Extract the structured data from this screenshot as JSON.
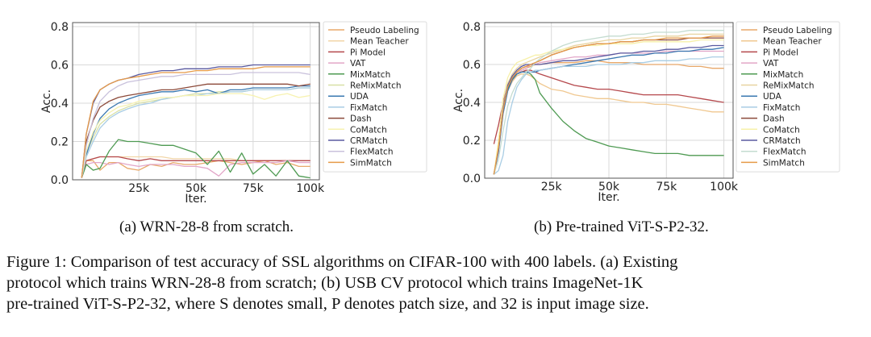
{
  "figure": {
    "subcaptions": [
      "(a) WRN-28-8 from scratch.",
      "(b) Pre-trained ViT-S-P2-32."
    ],
    "caption_lines": [
      "Figure 1: Comparison of test accuracy of SSL algorithms on CIFAR-100 with 400 labels. (a) Existing",
      "protocol which trains WRN-28-8 from scratch; (b) USB CV protocol which trains ImageNet-1K",
      "pre-trained ViT-S-P2-32, where S denotes small, P denotes patch size, and 32 is input image size."
    ]
  },
  "chart_data": [
    {
      "type": "line",
      "title": "",
      "xlabel": "Iter.",
      "ylabel": "Acc.",
      "xlim": [
        -4000,
        104000
      ],
      "ylim": [
        0,
        0.8
      ],
      "xticks": [
        25000,
        50000,
        75000,
        100000
      ],
      "xtick_labels": [
        "25k",
        "50k",
        "75k",
        "100k"
      ],
      "yticks": [
        0,
        0.2,
        0.4,
        0.6,
        0.8
      ],
      "ytick_labels": [
        "0.0",
        "0.2",
        "0.4",
        "0.6",
        "0.8"
      ],
      "grid": true,
      "legend": "right-outside",
      "x": [
        0,
        2000,
        5000,
        8000,
        12000,
        16000,
        20000,
        25000,
        30000,
        35000,
        40000,
        45000,
        50000,
        55000,
        60000,
        65000,
        70000,
        75000,
        80000,
        85000,
        90000,
        95000,
        100000
      ],
      "series": [
        {
          "name": "Pseudo Labeling",
          "color": "#e8a86a",
          "values": [
            0.01,
            0.1,
            0.1,
            0.05,
            0.09,
            0.09,
            0.06,
            0.05,
            0.08,
            0.07,
            0.09,
            0.08,
            0.08,
            0.09,
            0.1,
            0.09,
            0.08,
            0.09,
            0.1,
            0.08,
            0.09,
            0.07,
            0.07
          ]
        },
        {
          "name": "Mean Teacher",
          "color": "#f2d6a8",
          "values": [
            0.01,
            0.1,
            0.11,
            0.12,
            0.12,
            0.12,
            0.12,
            0.12,
            0.12,
            0.12,
            0.11,
            0.11,
            0.11,
            0.11,
            0.11,
            0.11,
            0.1,
            0.1,
            0.1,
            0.1,
            0.1,
            0.1,
            0.1
          ]
        },
        {
          "name": "Pi Model",
          "color": "#b5484c",
          "values": [
            0.01,
            0.1,
            0.11,
            0.12,
            0.12,
            0.12,
            0.11,
            0.1,
            0.11,
            0.1,
            0.1,
            0.1,
            0.1,
            0.1,
            0.1,
            0.1,
            0.1,
            0.1,
            0.1,
            0.1,
            0.1,
            0.1,
            0.1
          ]
        },
        {
          "name": "VAT",
          "color": "#e2a6c8",
          "values": [
            0.01,
            0.08,
            0.09,
            0.09,
            0.08,
            0.09,
            0.08,
            0.07,
            0.08,
            0.08,
            0.08,
            0.07,
            0.07,
            0.06,
            0.02,
            0.08,
            0.09,
            0.09,
            0.09,
            0.09,
            0.1,
            0.09,
            0.09
          ]
        },
        {
          "name": "MixMatch",
          "color": "#4e9a52",
          "values": [
            0.01,
            0.08,
            0.05,
            0.06,
            0.15,
            0.21,
            0.2,
            0.2,
            0.19,
            0.18,
            0.18,
            0.16,
            0.14,
            0.08,
            0.15,
            0.04,
            0.14,
            0.03,
            0.08,
            0.02,
            0.1,
            0.02,
            0.01
          ]
        },
        {
          "name": "ReMixMatch",
          "color": "#d8e0a6",
          "values": [
            0.01,
            0.14,
            0.22,
            0.29,
            0.33,
            0.36,
            0.38,
            0.4,
            0.41,
            0.42,
            0.43,
            0.44,
            0.45,
            0.45,
            0.46,
            0.46,
            0.46,
            0.47,
            0.47,
            0.47,
            0.47,
            0.48,
            0.48
          ]
        },
        {
          "name": "UDA",
          "color": "#3a78b0",
          "values": [
            0.01,
            0.13,
            0.24,
            0.32,
            0.37,
            0.4,
            0.42,
            0.44,
            0.45,
            0.46,
            0.46,
            0.47,
            0.46,
            0.47,
            0.45,
            0.47,
            0.47,
            0.48,
            0.48,
            0.48,
            0.48,
            0.49,
            0.49
          ]
        },
        {
          "name": "FixMatch",
          "color": "#a9cde4",
          "values": [
            0.01,
            0.12,
            0.2,
            0.27,
            0.32,
            0.35,
            0.37,
            0.39,
            0.4,
            0.42,
            0.43,
            0.44,
            0.44,
            0.45,
            0.45,
            0.46,
            0.46,
            0.47,
            0.47,
            0.47,
            0.47,
            0.48,
            0.48
          ]
        },
        {
          "name": "Dash",
          "color": "#8c4a3a",
          "values": [
            0.01,
            0.2,
            0.31,
            0.38,
            0.41,
            0.43,
            0.44,
            0.45,
            0.46,
            0.47,
            0.47,
            0.48,
            0.49,
            0.5,
            0.5,
            0.5,
            0.5,
            0.5,
            0.5,
            0.5,
            0.5,
            0.49,
            0.5
          ]
        },
        {
          "name": "CoMatch",
          "color": "#f7f2b0",
          "values": [
            0.01,
            0.15,
            0.25,
            0.31,
            0.35,
            0.38,
            0.39,
            0.41,
            0.42,
            0.43,
            0.43,
            0.44,
            0.44,
            0.44,
            0.45,
            0.45,
            0.45,
            0.44,
            0.42,
            0.44,
            0.45,
            0.43,
            0.44
          ]
        },
        {
          "name": "CRMatch",
          "color": "#5a5aa0",
          "values": [
            0.01,
            0.24,
            0.4,
            0.47,
            0.5,
            0.52,
            0.53,
            0.55,
            0.56,
            0.57,
            0.57,
            0.58,
            0.58,
            0.58,
            0.59,
            0.59,
            0.59,
            0.6,
            0.6,
            0.6,
            0.6,
            0.6,
            0.6
          ]
        },
        {
          "name": "FlexMatch",
          "color": "#c9c2dc",
          "values": [
            0.01,
            0.18,
            0.32,
            0.41,
            0.46,
            0.49,
            0.51,
            0.52,
            0.53,
            0.54,
            0.54,
            0.55,
            0.55,
            0.55,
            0.55,
            0.55,
            0.56,
            0.56,
            0.56,
            0.56,
            0.56,
            0.56,
            0.55
          ]
        },
        {
          "name": "SimMatch",
          "color": "#e69a48",
          "values": [
            0.01,
            0.24,
            0.41,
            0.47,
            0.5,
            0.52,
            0.53,
            0.54,
            0.55,
            0.56,
            0.56,
            0.56,
            0.57,
            0.57,
            0.58,
            0.58,
            0.58,
            0.58,
            0.59,
            0.59,
            0.59,
            0.59,
            0.59
          ]
        }
      ]
    },
    {
      "type": "line",
      "title": "",
      "xlabel": "Iter.",
      "ylabel": "Acc.",
      "xlim": [
        -4000,
        104000
      ],
      "ylim": [
        0,
        0.8
      ],
      "xticks": [
        25000,
        50000,
        75000,
        100000
      ],
      "xtick_labels": [
        "25k",
        "50k",
        "75k",
        "100k"
      ],
      "yticks": [
        0,
        0.2,
        0.4,
        0.6,
        0.8
      ],
      "ytick_labels": [
        "0.0",
        "0.2",
        "0.4",
        "0.6",
        "0.8"
      ],
      "grid": true,
      "legend": "right-outside",
      "x": [
        0,
        2000,
        4000,
        6000,
        8000,
        10000,
        12000,
        14000,
        16000,
        18000,
        20000,
        25000,
        30000,
        35000,
        40000,
        45000,
        50000,
        55000,
        60000,
        65000,
        70000,
        75000,
        80000,
        85000,
        90000,
        95000,
        100000
      ],
      "series": [
        {
          "name": "Pseudo Labeling",
          "color": "#e8a86a",
          "values": [
            0.02,
            0.15,
            0.35,
            0.47,
            0.52,
            0.55,
            0.57,
            0.58,
            0.59,
            0.6,
            0.6,
            0.61,
            0.61,
            0.61,
            0.62,
            0.62,
            0.61,
            0.61,
            0.61,
            0.6,
            0.6,
            0.6,
            0.6,
            0.59,
            0.59,
            0.58,
            0.58
          ]
        },
        {
          "name": "Mean Teacher",
          "color": "#f0c890",
          "values": [
            0.02,
            0.15,
            0.35,
            0.46,
            0.51,
            0.54,
            0.55,
            0.55,
            0.54,
            0.52,
            0.5,
            0.47,
            0.46,
            0.44,
            0.43,
            0.42,
            0.42,
            0.41,
            0.4,
            0.4,
            0.39,
            0.39,
            0.38,
            0.37,
            0.36,
            0.35,
            0.35
          ]
        },
        {
          "name": "Pi Model",
          "color": "#b5484c",
          "values": [
            0.18,
            0.28,
            0.4,
            0.49,
            0.53,
            0.55,
            0.56,
            0.57,
            0.57,
            0.56,
            0.55,
            0.53,
            0.51,
            0.49,
            0.48,
            0.47,
            0.47,
            0.46,
            0.45,
            0.44,
            0.44,
            0.44,
            0.44,
            0.43,
            0.42,
            0.41,
            0.4
          ]
        },
        {
          "name": "VAT",
          "color": "#e2a6c8",
          "values": [
            0.02,
            0.14,
            0.34,
            0.46,
            0.52,
            0.55,
            0.57,
            0.58,
            0.6,
            0.6,
            0.61,
            0.62,
            0.63,
            0.64,
            0.64,
            0.65,
            0.65,
            0.66,
            0.66,
            0.66,
            0.66,
            0.67,
            0.67,
            0.67,
            0.67,
            0.67,
            0.67
          ]
        },
        {
          "name": "MixMatch",
          "color": "#4e9a52",
          "values": [
            0.02,
            0.15,
            0.36,
            0.47,
            0.52,
            0.55,
            0.56,
            0.56,
            0.55,
            0.52,
            0.45,
            0.37,
            0.3,
            0.25,
            0.21,
            0.19,
            0.17,
            0.16,
            0.15,
            0.14,
            0.13,
            0.13,
            0.13,
            0.12,
            0.12,
            0.12,
            0.12
          ]
        },
        {
          "name": "ReMixMatch",
          "color": "#e8d4a0",
          "values": [
            0.02,
            0.16,
            0.38,
            0.5,
            0.55,
            0.58,
            0.6,
            0.61,
            0.62,
            0.63,
            0.64,
            0.66,
            0.68,
            0.7,
            0.71,
            0.72,
            0.73,
            0.73,
            0.74,
            0.74,
            0.75,
            0.75,
            0.75,
            0.76,
            0.76,
            0.76,
            0.76
          ]
        },
        {
          "name": "UDA",
          "color": "#3a78b0",
          "values": [
            0.02,
            0.14,
            0.34,
            0.46,
            0.52,
            0.55,
            0.56,
            0.56,
            0.56,
            0.56,
            0.57,
            0.58,
            0.59,
            0.6,
            0.61,
            0.62,
            0.63,
            0.64,
            0.65,
            0.65,
            0.66,
            0.66,
            0.67,
            0.67,
            0.68,
            0.68,
            0.69
          ]
        },
        {
          "name": "FixMatch",
          "color": "#a9cde4",
          "values": [
            0.02,
            0.04,
            0.12,
            0.3,
            0.4,
            0.48,
            0.52,
            0.55,
            0.56,
            0.57,
            0.57,
            0.58,
            0.59,
            0.59,
            0.59,
            0.6,
            0.6,
            0.6,
            0.61,
            0.61,
            0.62,
            0.62,
            0.62,
            0.63,
            0.63,
            0.64,
            0.64
          ]
        },
        {
          "name": "Dash",
          "color": "#8c4a3a",
          "values": [
            0.02,
            0.16,
            0.37,
            0.48,
            0.53,
            0.56,
            0.58,
            0.59,
            0.6,
            0.61,
            0.62,
            0.65,
            0.67,
            0.69,
            0.7,
            0.71,
            0.71,
            0.72,
            0.72,
            0.73,
            0.73,
            0.73,
            0.73,
            0.74,
            0.74,
            0.74,
            0.74
          ]
        },
        {
          "name": "CoMatch",
          "color": "#f7f0a8",
          "values": [
            0.02,
            0.2,
            0.42,
            0.53,
            0.58,
            0.61,
            0.62,
            0.63,
            0.64,
            0.65,
            0.65,
            0.67,
            0.68,
            0.69,
            0.7,
            0.7,
            0.71,
            0.71,
            0.71,
            0.72,
            0.72,
            0.72,
            0.72,
            0.72,
            0.73,
            0.73,
            0.73
          ]
        },
        {
          "name": "CRMatch",
          "color": "#5a5aa0",
          "values": [
            0.02,
            0.15,
            0.37,
            0.49,
            0.54,
            0.57,
            0.59,
            0.6,
            0.6,
            0.6,
            0.6,
            0.61,
            0.62,
            0.62,
            0.63,
            0.64,
            0.65,
            0.66,
            0.66,
            0.67,
            0.67,
            0.68,
            0.68,
            0.69,
            0.69,
            0.7,
            0.7
          ]
        },
        {
          "name": "FlexMatch",
          "color": "#c4dcd0",
          "values": [
            0.02,
            0.1,
            0.25,
            0.38,
            0.45,
            0.5,
            0.53,
            0.56,
            0.58,
            0.61,
            0.63,
            0.67,
            0.7,
            0.72,
            0.73,
            0.74,
            0.75,
            0.75,
            0.76,
            0.76,
            0.77,
            0.77,
            0.77,
            0.78,
            0.78,
            0.78,
            0.78
          ]
        },
        {
          "name": "SimMatch",
          "color": "#e69a48",
          "values": [
            0.02,
            0.16,
            0.36,
            0.48,
            0.53,
            0.56,
            0.58,
            0.59,
            0.6,
            0.61,
            0.62,
            0.65,
            0.67,
            0.69,
            0.7,
            0.71,
            0.71,
            0.72,
            0.72,
            0.73,
            0.73,
            0.74,
            0.74,
            0.74,
            0.74,
            0.75,
            0.75
          ]
        }
      ]
    }
  ]
}
